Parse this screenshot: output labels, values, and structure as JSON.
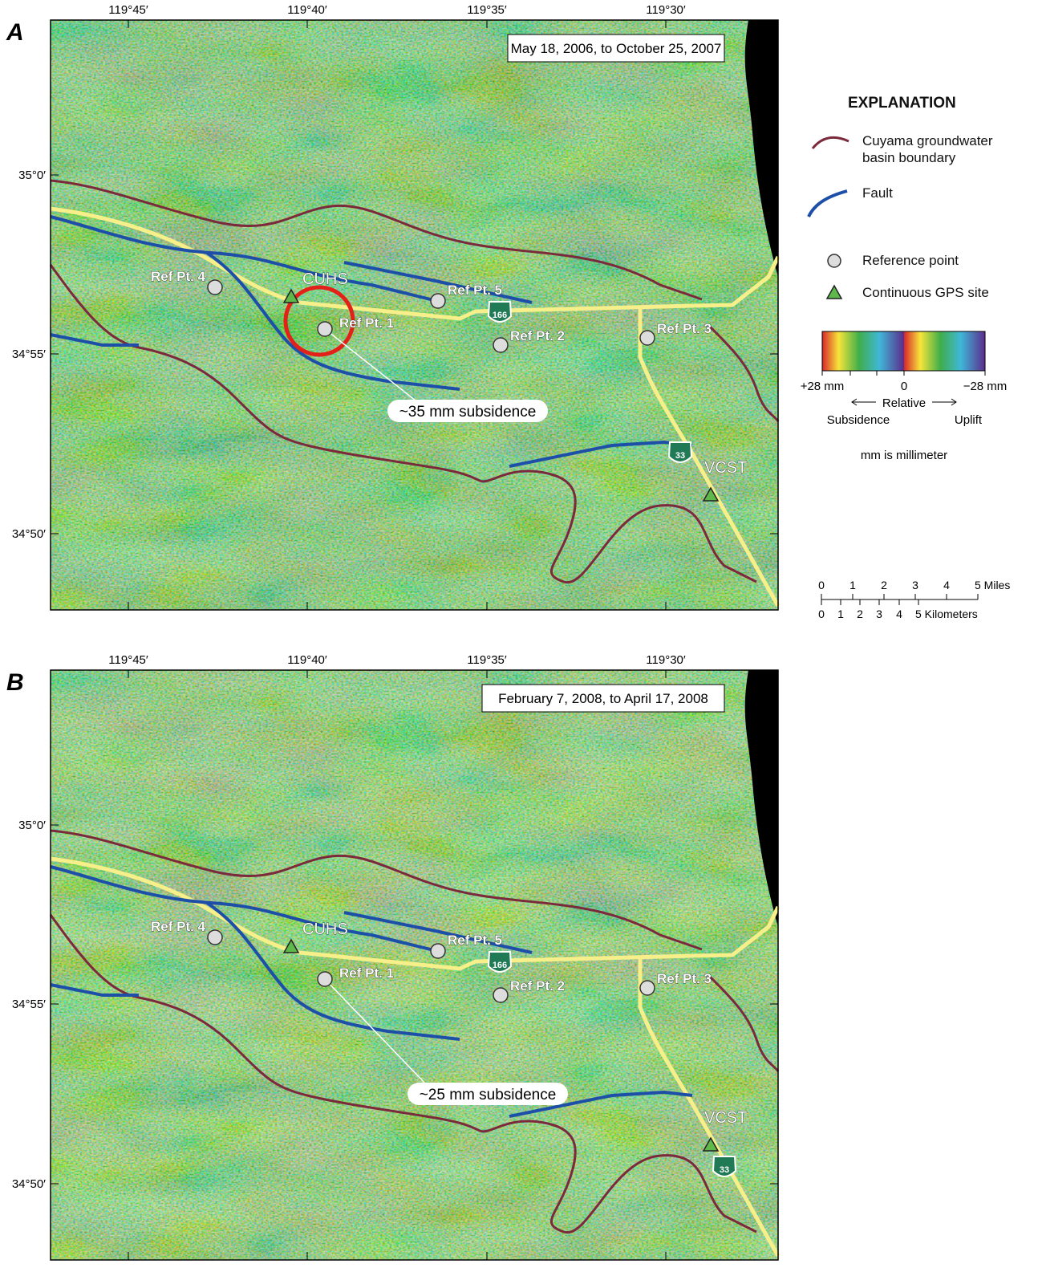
{
  "panels": [
    {
      "label": "A",
      "period": "May 18, 2006, to October 25, 2007",
      "lon_ticks": [
        "119°45′",
        "119°40′",
        "119°35′",
        "119°30′"
      ],
      "lat_ticks": [
        "35°0′",
        "34°55′",
        "34°50′"
      ],
      "sites": [
        "Ref Pt. 4",
        "CUHS",
        "Ref Pt. 5",
        "Ref Pt. 1",
        "Ref Pt. 2",
        "Ref Pt. 3",
        "VCST"
      ],
      "highways": [
        "166",
        "33"
      ],
      "annotation": "~35 mm subsidence"
    },
    {
      "label": "B",
      "period": "February 7, 2008, to April 17, 2008",
      "lon_ticks": [
        "119°45′",
        "119°40′",
        "119°35′",
        "119°30′"
      ],
      "lat_ticks": [
        "35°0′",
        "34°55′",
        "34°50′"
      ],
      "sites": [
        "Ref Pt. 4",
        "CUHS",
        "Ref Pt. 5",
        "Ref Pt. 1",
        "Ref Pt. 2",
        "Ref Pt. 3",
        "VCST"
      ],
      "highways": [
        "166",
        "33"
      ],
      "annotation": "~25 mm subsidence"
    }
  ],
  "explanation": {
    "title": "EXPLANATION",
    "items": [
      "Cuyama groundwater basin boundary",
      "Fault",
      "Reference point",
      "Continuous GPS site"
    ],
    "color_scale": {
      "left": "+28 mm",
      "middle": "0",
      "right": "−28 mm",
      "relative": "Relative",
      "subsidence": "Subsidence",
      "uplift": "Uplift"
    },
    "note": "mm is millimeter",
    "scale": {
      "miles": [
        "0",
        "1",
        "2",
        "3",
        "4",
        "5 Miles"
      ],
      "km": [
        "0",
        "1",
        "2",
        "3",
        "4",
        "5 Kilometers"
      ]
    }
  }
}
